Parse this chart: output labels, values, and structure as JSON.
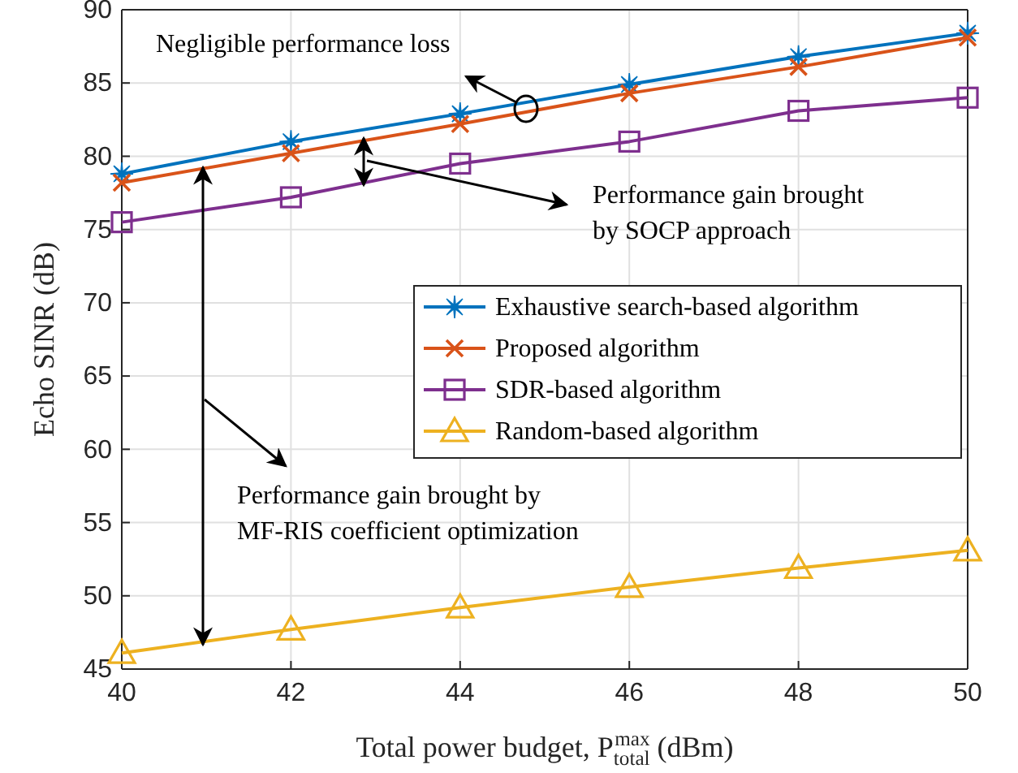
{
  "chart_data": {
    "type": "line",
    "xlabel": "Total power budget, P$_{total}$$^{max}$ (dBm)",
    "ylabel": "Echo SINR (dB)",
    "x": [
      40,
      42,
      44,
      46,
      48,
      50
    ],
    "xlim": [
      40,
      50
    ],
    "xticks": [
      40,
      42,
      44,
      46,
      48,
      50
    ],
    "ylim": [
      45,
      90
    ],
    "yticks": [
      45,
      50,
      55,
      60,
      65,
      70,
      75,
      80,
      85,
      90
    ],
    "grid": true,
    "legend": "right",
    "line_style": "solid",
    "series": [
      {
        "name": "Exhaustive search-based algorithm",
        "color": "#0072bd",
        "marker": "star",
        "values": [
          78.8,
          81.0,
          82.9,
          84.9,
          86.8,
          88.4
        ]
      },
      {
        "name": "Proposed algorithm",
        "color": "#d95319",
        "marker": "cross",
        "values": [
          78.2,
          80.2,
          82.2,
          84.3,
          86.1,
          88.1
        ]
      },
      {
        "name": "SDR-based algorithm",
        "color": "#7e2f8e",
        "marker": "square",
        "values": [
          75.5,
          77.2,
          79.5,
          81.0,
          83.1,
          84.0
        ]
      },
      {
        "name": "Random-based algorithm",
        "color": "#edb120",
        "marker": "triangle",
        "values": [
          46.1,
          47.7,
          49.2,
          50.6,
          51.9,
          53.1
        ]
      }
    ],
    "annotations": [
      "Negligible performance loss",
      "Performance gain brought\nby SOCP approach",
      "Performance gain brought by\nMF-RIS coefficient optimization"
    ]
  }
}
